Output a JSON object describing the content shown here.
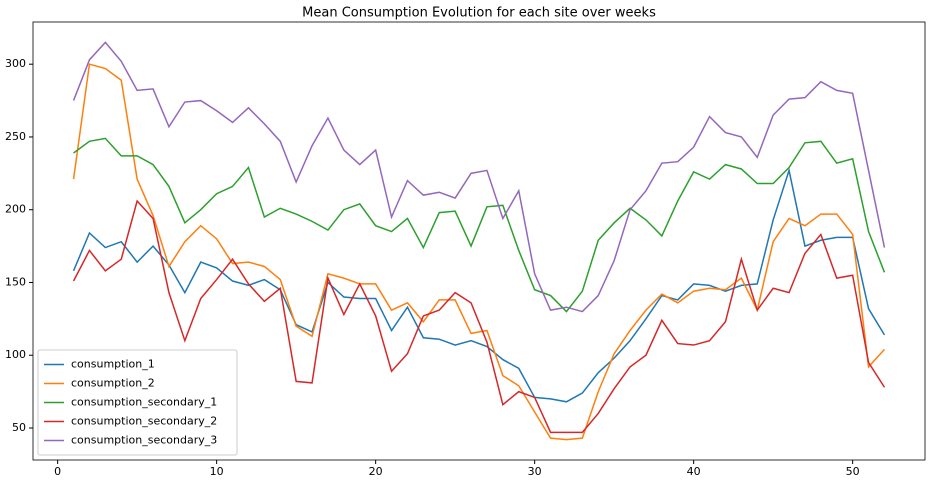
{
  "chart_data": {
    "type": "line",
    "title": "Mean Consumption Evolution for each site over weeks",
    "x": [
      1,
      2,
      3,
      4,
      5,
      6,
      7,
      8,
      9,
      10,
      11,
      12,
      13,
      14,
      15,
      16,
      17,
      18,
      19,
      20,
      21,
      22,
      23,
      24,
      25,
      26,
      27,
      28,
      29,
      30,
      31,
      32,
      33,
      34,
      35,
      36,
      37,
      38,
      39,
      40,
      41,
      42,
      43,
      44,
      45,
      46,
      47,
      48,
      49,
      50,
      51,
      52
    ],
    "series": [
      {
        "name": "consumption_1",
        "color": "#1f77b4",
        "values": [
          158,
          184,
          174,
          178,
          164,
          175,
          162,
          143,
          164,
          160,
          151,
          148,
          152,
          145,
          121,
          116,
          150,
          140,
          139,
          139,
          117,
          133,
          112,
          111,
          107,
          110,
          106,
          97,
          91,
          71,
          70,
          68,
          74,
          88,
          98,
          110,
          125,
          141,
          138,
          149,
          148,
          144,
          148,
          149,
          193,
          227,
          175,
          179,
          181,
          181,
          132,
          114
        ]
      },
      {
        "name": "consumption_2",
        "color": "#ff7f0e",
        "values": [
          221,
          300,
          297,
          289,
          221,
          196,
          161,
          178,
          189,
          180,
          163,
          164,
          161,
          152,
          120,
          113,
          156,
          153,
          149,
          149,
          131,
          136,
          123,
          138,
          138,
          115,
          117,
          86,
          79,
          61,
          43,
          42,
          43,
          75,
          101,
          117,
          131,
          142,
          136,
          144,
          146,
          145,
          153,
          131,
          178,
          194,
          189,
          197,
          197,
          183,
          92,
          104
        ]
      },
      {
        "name": "consumption_secondary_1",
        "color": "#2ca02c",
        "values": [
          239,
          247,
          249,
          237,
          237,
          231,
          216,
          191,
          200,
          211,
          216,
          229,
          195,
          201,
          197,
          192,
          186,
          200,
          204,
          189,
          185,
          194,
          174,
          198,
          199,
          175,
          202,
          203,
          172,
          145,
          141,
          130,
          144,
          179,
          191,
          201,
          193,
          182,
          206,
          226,
          221,
          231,
          228,
          218,
          218,
          229,
          246,
          247,
          232,
          235,
          185,
          157
        ]
      },
      {
        "name": "consumption_secondary_2",
        "color": "#d62728",
        "values": [
          151,
          172,
          158,
          166,
          206,
          194,
          143,
          110,
          139,
          152,
          166,
          149,
          137,
          146,
          82,
          81,
          153,
          128,
          149,
          127,
          89,
          101,
          127,
          131,
          143,
          136,
          109,
          66,
          75,
          71,
          47,
          47,
          47,
          60,
          77,
          92,
          100,
          124,
          108,
          107,
          110,
          123,
          166,
          131,
          146,
          143,
          170,
          183,
          153,
          155,
          95,
          78
        ]
      },
      {
        "name": "consumption_secondary_3",
        "color": "#9467bd",
        "values": [
          275,
          303,
          315,
          302,
          282,
          283,
          257,
          274,
          275,
          268,
          260,
          270,
          259,
          247,
          219,
          244,
          263,
          241,
          231,
          241,
          195,
          220,
          210,
          212,
          208,
          225,
          227,
          194,
          213,
          156,
          131,
          133,
          130,
          141,
          165,
          200,
          213,
          232,
          233,
          243,
          264,
          253,
          250,
          236,
          265,
          276,
          277,
          288,
          282,
          280,
          227,
          174
        ]
      }
    ],
    "xlim": [
      -1.55,
      54.55
    ],
    "ylim": [
      28,
      329
    ],
    "xticks": [
      0,
      10,
      20,
      30,
      40,
      50
    ],
    "yticks": [
      50,
      100,
      150,
      200,
      250,
      300
    ],
    "grid": false,
    "legend": "lower left"
  }
}
